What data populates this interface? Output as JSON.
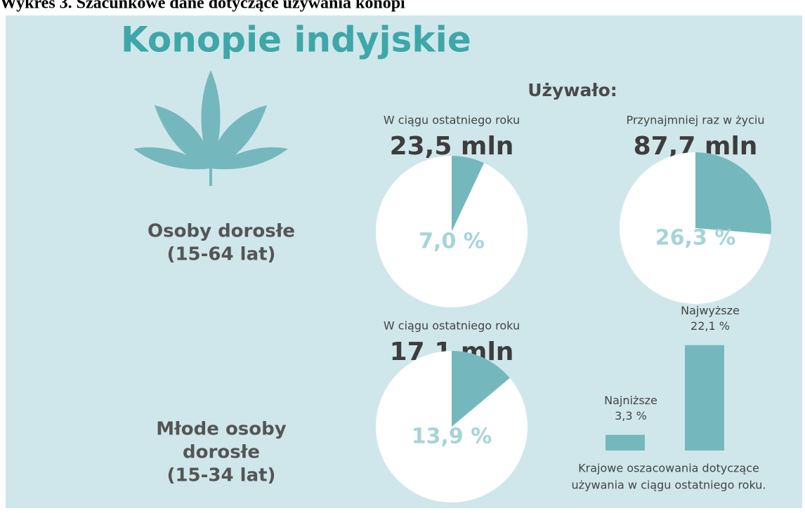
{
  "caption": "Wykres 3. Szacunkowe dane dotyczące używania konopi",
  "title": "Konopie indyjskie",
  "used_label": "Używało:",
  "groups": [
    {
      "lines": [
        "Osoby dorosłe",
        "(15-64 lat)"
      ]
    },
    {
      "lines": [
        "Młode osoby",
        "dorosłe",
        "(15-34 lat)"
      ]
    }
  ],
  "chart_data": [
    {
      "type": "pie",
      "title": "W ciągu ostatniego roku",
      "subtitle": "23,5 mln",
      "values": [
        7.0
      ],
      "value_labels": [
        "7,0 %"
      ],
      "color": "#74b8bd"
    },
    {
      "type": "pie",
      "title": "Przynajmniej raz w życiu",
      "subtitle": "87,7 mln",
      "values": [
        26.3
      ],
      "value_labels": [
        "26,3 %"
      ],
      "color": "#74b8bd"
    },
    {
      "type": "pie",
      "title": "W ciągu ostatniego roku",
      "subtitle": "17,1 mln",
      "values": [
        13.9
      ],
      "value_labels": [
        "13,9 %"
      ],
      "color": "#74b8bd"
    },
    {
      "type": "bar",
      "categories": [
        "Najniższe",
        "Najwyższe"
      ],
      "values": [
        3.3,
        22.1
      ],
      "value_labels": [
        "3,3 %",
        "22,1 %"
      ],
      "color": "#74b8bd",
      "note": [
        "Krajowe oszacowania dotyczące",
        "używania w ciągu ostatniego roku."
      ]
    }
  ]
}
